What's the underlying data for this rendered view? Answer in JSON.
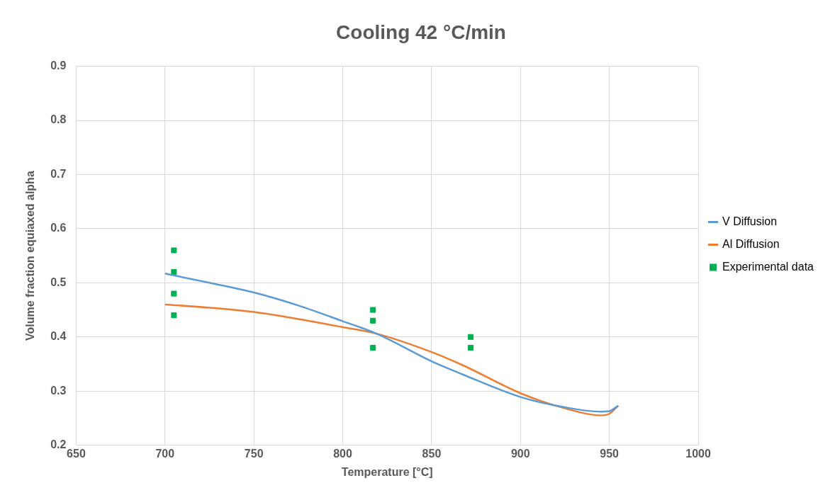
{
  "chart_data": {
    "type": "line",
    "title": "Cooling 42 °C/min",
    "xlabel": "Temperature [°C]",
    "ylabel": "Volume fraction equiaxed alpha",
    "xlim": [
      650,
      1000
    ],
    "xticks": [
      650,
      700,
      750,
      800,
      850,
      900,
      950,
      1000
    ],
    "ylim": [
      0.2,
      0.9
    ],
    "yticks": [
      0.2,
      0.3,
      0.4,
      0.5,
      0.6,
      0.7,
      0.8,
      0.9
    ],
    "grid": true,
    "legend": "right",
    "marker": "none",
    "line_style": "solid",
    "series": [
      {
        "name": "V Diffusion",
        "color": "#5b9bd5",
        "x": [
          700,
          725,
          750,
          775,
          800,
          819,
          850,
          868,
          900,
          925,
          945,
          950,
          955
        ],
        "values": [
          0.517,
          0.5,
          0.482,
          0.458,
          0.429,
          0.406,
          0.355,
          0.33,
          0.289,
          0.27,
          0.262,
          0.263,
          0.273
        ]
      },
      {
        "name": "Al Diffusion",
        "color": "#ed7d31",
        "x": [
          700,
          725,
          750,
          775,
          800,
          819,
          850,
          868,
          900,
          925,
          945,
          950,
          955
        ],
        "values": [
          0.46,
          0.454,
          0.446,
          0.433,
          0.418,
          0.406,
          0.372,
          0.347,
          0.296,
          0.268,
          0.255,
          0.258,
          0.273
        ]
      },
      {
        "name": "Experimental data",
        "type": "scatter",
        "marker": "square",
        "color": "#00b050",
        "x": [
          705,
          705,
          705,
          705,
          817,
          817,
          817,
          872,
          872
        ],
        "values": [
          0.56,
          0.52,
          0.48,
          0.44,
          0.45,
          0.43,
          0.38,
          0.4,
          0.38
        ]
      }
    ]
  }
}
